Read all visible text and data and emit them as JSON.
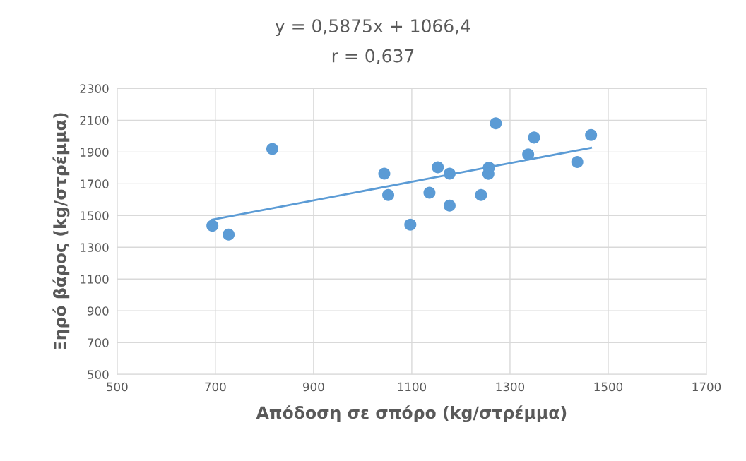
{
  "chart_data": {
    "type": "scatter",
    "title": "y = 0,5875x + 1066,4",
    "subtitle": "r = 0,637",
    "xlabel": "Απόδοση σε σπόρο (kg/στρέμμα)",
    "ylabel": "Ξηρό βάρος (kg/στρέμμα)",
    "xlim": [
      500,
      1700
    ],
    "xticks": [
      500,
      700,
      900,
      1100,
      1300,
      1500,
      1700
    ],
    "ylim": [
      500,
      2300
    ],
    "yticks": [
      500,
      700,
      900,
      1100,
      1300,
      1500,
      1700,
      1900,
      2100,
      2300
    ],
    "grid": true,
    "legend": false,
    "marker": "circle",
    "series": [
      {
        "color": "#5b9bd5",
        "x": [
          694,
          727,
          816,
          1044,
          1052,
          1097,
          1136,
          1153,
          1177,
          1177,
          1241,
          1257,
          1256,
          1271,
          1337,
          1349,
          1437,
          1465
        ],
        "values": [
          1436,
          1380,
          1919,
          1764,
          1629,
          1443,
          1644,
          1804,
          1764,
          1563,
          1629,
          1802,
          1763,
          2080,
          1885,
          1991,
          1837,
          2007
        ]
      },
      {
        "type": "line",
        "color": "#5b9bd5",
        "x": [
          694,
          1465
        ],
        "values": [
          1474,
          1927
        ],
        "marker": "none",
        "line_style": "solid"
      }
    ]
  }
}
